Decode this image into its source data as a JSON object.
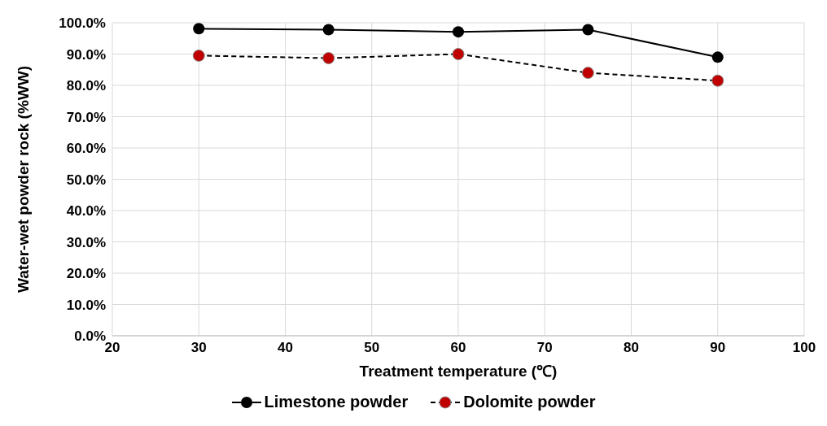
{
  "chart_data": {
    "type": "line",
    "xlabel": "Treatment temperature (℃)",
    "ylabel": "Water-wet powder rock (%WW)",
    "x": [
      30,
      45,
      60,
      75,
      90
    ],
    "series": [
      {
        "name": "Limestone powder",
        "color": "#000000",
        "values": [
          98.1,
          97.8,
          97.1,
          97.8,
          89.0
        ],
        "line_style": "solid"
      },
      {
        "name": "Dolomite powder",
        "color": "#c00000",
        "values": [
          89.5,
          88.7,
          90.0,
          84.0,
          81.5
        ],
        "line_style": "dashed"
      }
    ],
    "xlim": [
      20,
      100
    ],
    "xticks": [
      20,
      30,
      40,
      50,
      60,
      70,
      80,
      90,
      100
    ],
    "ylim": [
      0,
      100
    ],
    "yticks": [
      {
        "value": 0,
        "label": "0.0%"
      },
      {
        "value": 10,
        "label": "10.0%"
      },
      {
        "value": 20,
        "label": "20.0%"
      },
      {
        "value": 30,
        "label": "30.0%"
      },
      {
        "value": 40,
        "label": "40.0%"
      },
      {
        "value": 50,
        "label": "50.0%"
      },
      {
        "value": 60,
        "label": "60.0%"
      },
      {
        "value": 70,
        "label": "70.0%"
      },
      {
        "value": 80,
        "label": "80.0%"
      },
      {
        "value": 90,
        "label": "90.0%"
      },
      {
        "value": 100,
        "label": "100.0%"
      }
    ],
    "grid": true,
    "legend": "bottom",
    "marker": "circle"
  }
}
